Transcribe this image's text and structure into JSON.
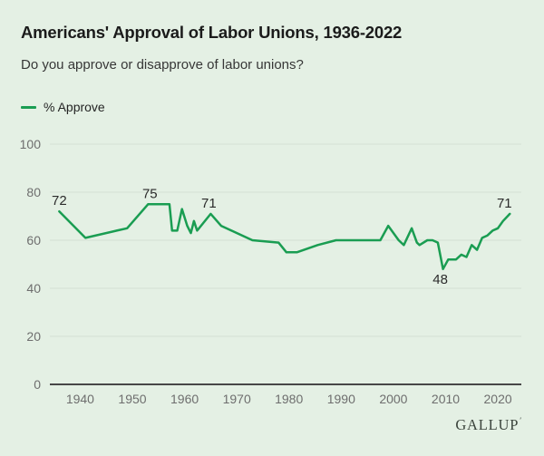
{
  "page": {
    "background": "#e4f0e4"
  },
  "header": {
    "title": "Americans' Approval of Labor Unions, 1936-2022",
    "subtitle": "Do you approve or disapprove of labor unions?"
  },
  "legend": {
    "label": "% Approve",
    "color": "#1a9d52"
  },
  "footer": {
    "brand": "GALLUP",
    "brand_mark": "′"
  },
  "chart_data": {
    "type": "line",
    "title": "Americans' Approval of Labor Unions, 1936-2022",
    "subtitle": "Do you approve or disapprove of labor unions?",
    "series_name": "% Approve",
    "line_color": "#1a9d52",
    "grid_color": "#d3dfd3",
    "axis_color": "#474747",
    "grid": "horizontal-only",
    "legend_position": "top-left",
    "xlim": [
      1934.2,
      2024.5
    ],
    "ylim": [
      0,
      100
    ],
    "yticks": [
      0,
      20,
      40,
      60,
      80,
      100
    ],
    "xticks": [
      1940,
      1950,
      1960,
      1970,
      1980,
      1990,
      2000,
      2010,
      2020
    ],
    "points": [
      [
        1936,
        72
      ],
      [
        1941,
        61
      ],
      [
        1947,
        64
      ],
      [
        1949,
        65
      ],
      [
        1953,
        75
      ],
      [
        1957.1,
        75
      ],
      [
        1957.6,
        64
      ],
      [
        1958.6,
        64
      ],
      [
        1959.5,
        73
      ],
      [
        1960.5,
        66
      ],
      [
        1961.2,
        63
      ],
      [
        1961.8,
        68
      ],
      [
        1962.4,
        64
      ],
      [
        1965,
        71
      ],
      [
        1967,
        66
      ],
      [
        1973,
        60
      ],
      [
        1978,
        59
      ],
      [
        1979.5,
        55
      ],
      [
        1981.5,
        55
      ],
      [
        1985.5,
        58
      ],
      [
        1989,
        60
      ],
      [
        1991,
        60
      ],
      [
        1997.5,
        60
      ],
      [
        1999,
        66
      ],
      [
        2001,
        60
      ],
      [
        2002,
        58
      ],
      [
        2003.5,
        65
      ],
      [
        2004.5,
        59
      ],
      [
        2005,
        58
      ],
      [
        2006.5,
        60
      ],
      [
        2007.5,
        60
      ],
      [
        2008.5,
        59
      ],
      [
        2009.5,
        48
      ],
      [
        2010.5,
        52
      ],
      [
        2012,
        52
      ],
      [
        2013,
        54
      ],
      [
        2014,
        53
      ],
      [
        2015,
        58
      ],
      [
        2016,
        56
      ],
      [
        2017,
        61
      ],
      [
        2018,
        62
      ],
      [
        2019,
        64
      ],
      [
        2020,
        65
      ],
      [
        2021,
        68
      ],
      [
        2022.3,
        71
      ]
    ],
    "annotations": [
      {
        "x": 1936,
        "y": 72,
        "label": "72",
        "position": "above",
        "dx": 0
      },
      {
        "x": 1953,
        "y": 75,
        "label": "75",
        "position": "above",
        "dx": 2
      },
      {
        "x": 1965,
        "y": 71,
        "label": "71",
        "position": "above",
        "dx": -2
      },
      {
        "x": 2009.5,
        "y": 48,
        "label": "48",
        "position": "below",
        "dx": -3
      },
      {
        "x": 2022.3,
        "y": 71,
        "label": "71",
        "position": "above",
        "dx": -6
      }
    ]
  }
}
